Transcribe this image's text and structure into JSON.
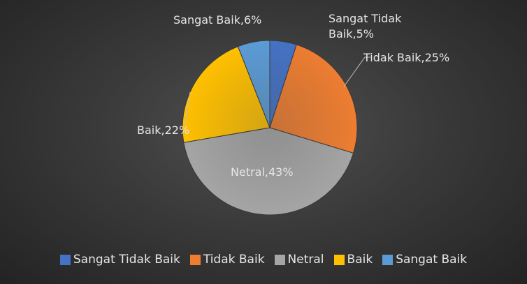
{
  "chart_data": {
    "type": "pie",
    "categories": [
      "Sangat Tidak Baik",
      "Tidak Baik",
      "Netral",
      "Baik",
      "Sangat Baik"
    ],
    "values": [
      5,
      25,
      43,
      22,
      6
    ],
    "value_labels": [
      "Sangat Tidak Baik,5%",
      "Tidak Baik,25%",
      "Netral,43%",
      "Baik,22%",
      "Sangat Baik,6%"
    ],
    "colors": [
      "#4472c4",
      "#ed7d31",
      "#a5a5a5",
      "#ffc000",
      "#5b9bd5"
    ],
    "legend": "bottom"
  }
}
